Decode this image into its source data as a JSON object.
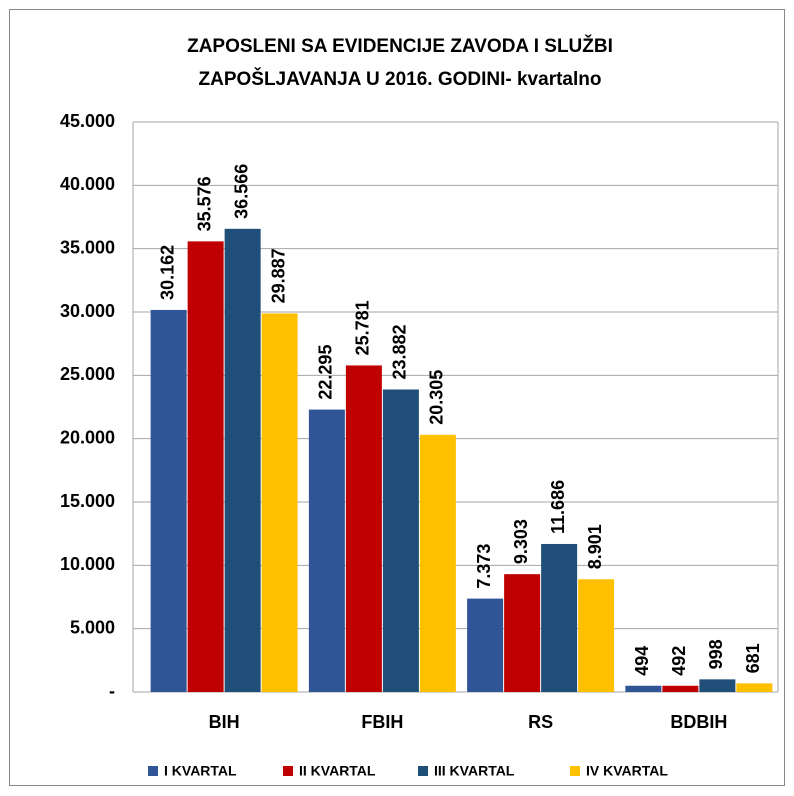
{
  "chart_data": {
    "type": "bar",
    "title": [
      "ZAPOSLENI SA EVIDENCIJE ZAVODA I SLUŽBI",
      "ZAPOŠLJAVANJA U 2016. GODINI- kvartalno"
    ],
    "categories": [
      "BIH",
      "FBIH",
      "RS",
      "BDBIH"
    ],
    "series": [
      {
        "name": "I KVARTAL",
        "color": "#2f5597",
        "values": [
          30162,
          22295,
          7373,
          494
        ],
        "value_labels": [
          "30.162",
          "22.295",
          "7.373",
          "494"
        ]
      },
      {
        "name": "II KVARTAL",
        "color": "#c00000",
        "values": [
          35576,
          25781,
          9303,
          492
        ],
        "value_labels": [
          "35.576",
          "25.781",
          "9.303",
          "492"
        ]
      },
      {
        "name": "III KVARTAL",
        "color": "#1f4e79",
        "values": [
          36566,
          23882,
          11686,
          998
        ],
        "value_labels": [
          "36.566",
          "23.882",
          "11.686",
          "998"
        ]
      },
      {
        "name": "IV KVARTAL",
        "color": "#ffc000",
        "values": [
          29887,
          20305,
          8901,
          681
        ],
        "value_labels": [
          "29.887",
          "20.305",
          "8.901",
          "681"
        ]
      }
    ],
    "ylim": [
      0,
      45000
    ],
    "yticks": [
      {
        "value": 0,
        "label": "-"
      },
      {
        "value": 5000,
        "label": "5.000"
      },
      {
        "value": 10000,
        "label": "10.000"
      },
      {
        "value": 15000,
        "label": "15.000"
      },
      {
        "value": 20000,
        "label": "20.000"
      },
      {
        "value": 25000,
        "label": "25.000"
      },
      {
        "value": 30000,
        "label": "30.000"
      },
      {
        "value": 35000,
        "label": "35.000"
      },
      {
        "value": 40000,
        "label": "40.000"
      },
      {
        "value": 45000,
        "label": "45.000"
      }
    ],
    "grid": true,
    "legend": "bottom"
  }
}
